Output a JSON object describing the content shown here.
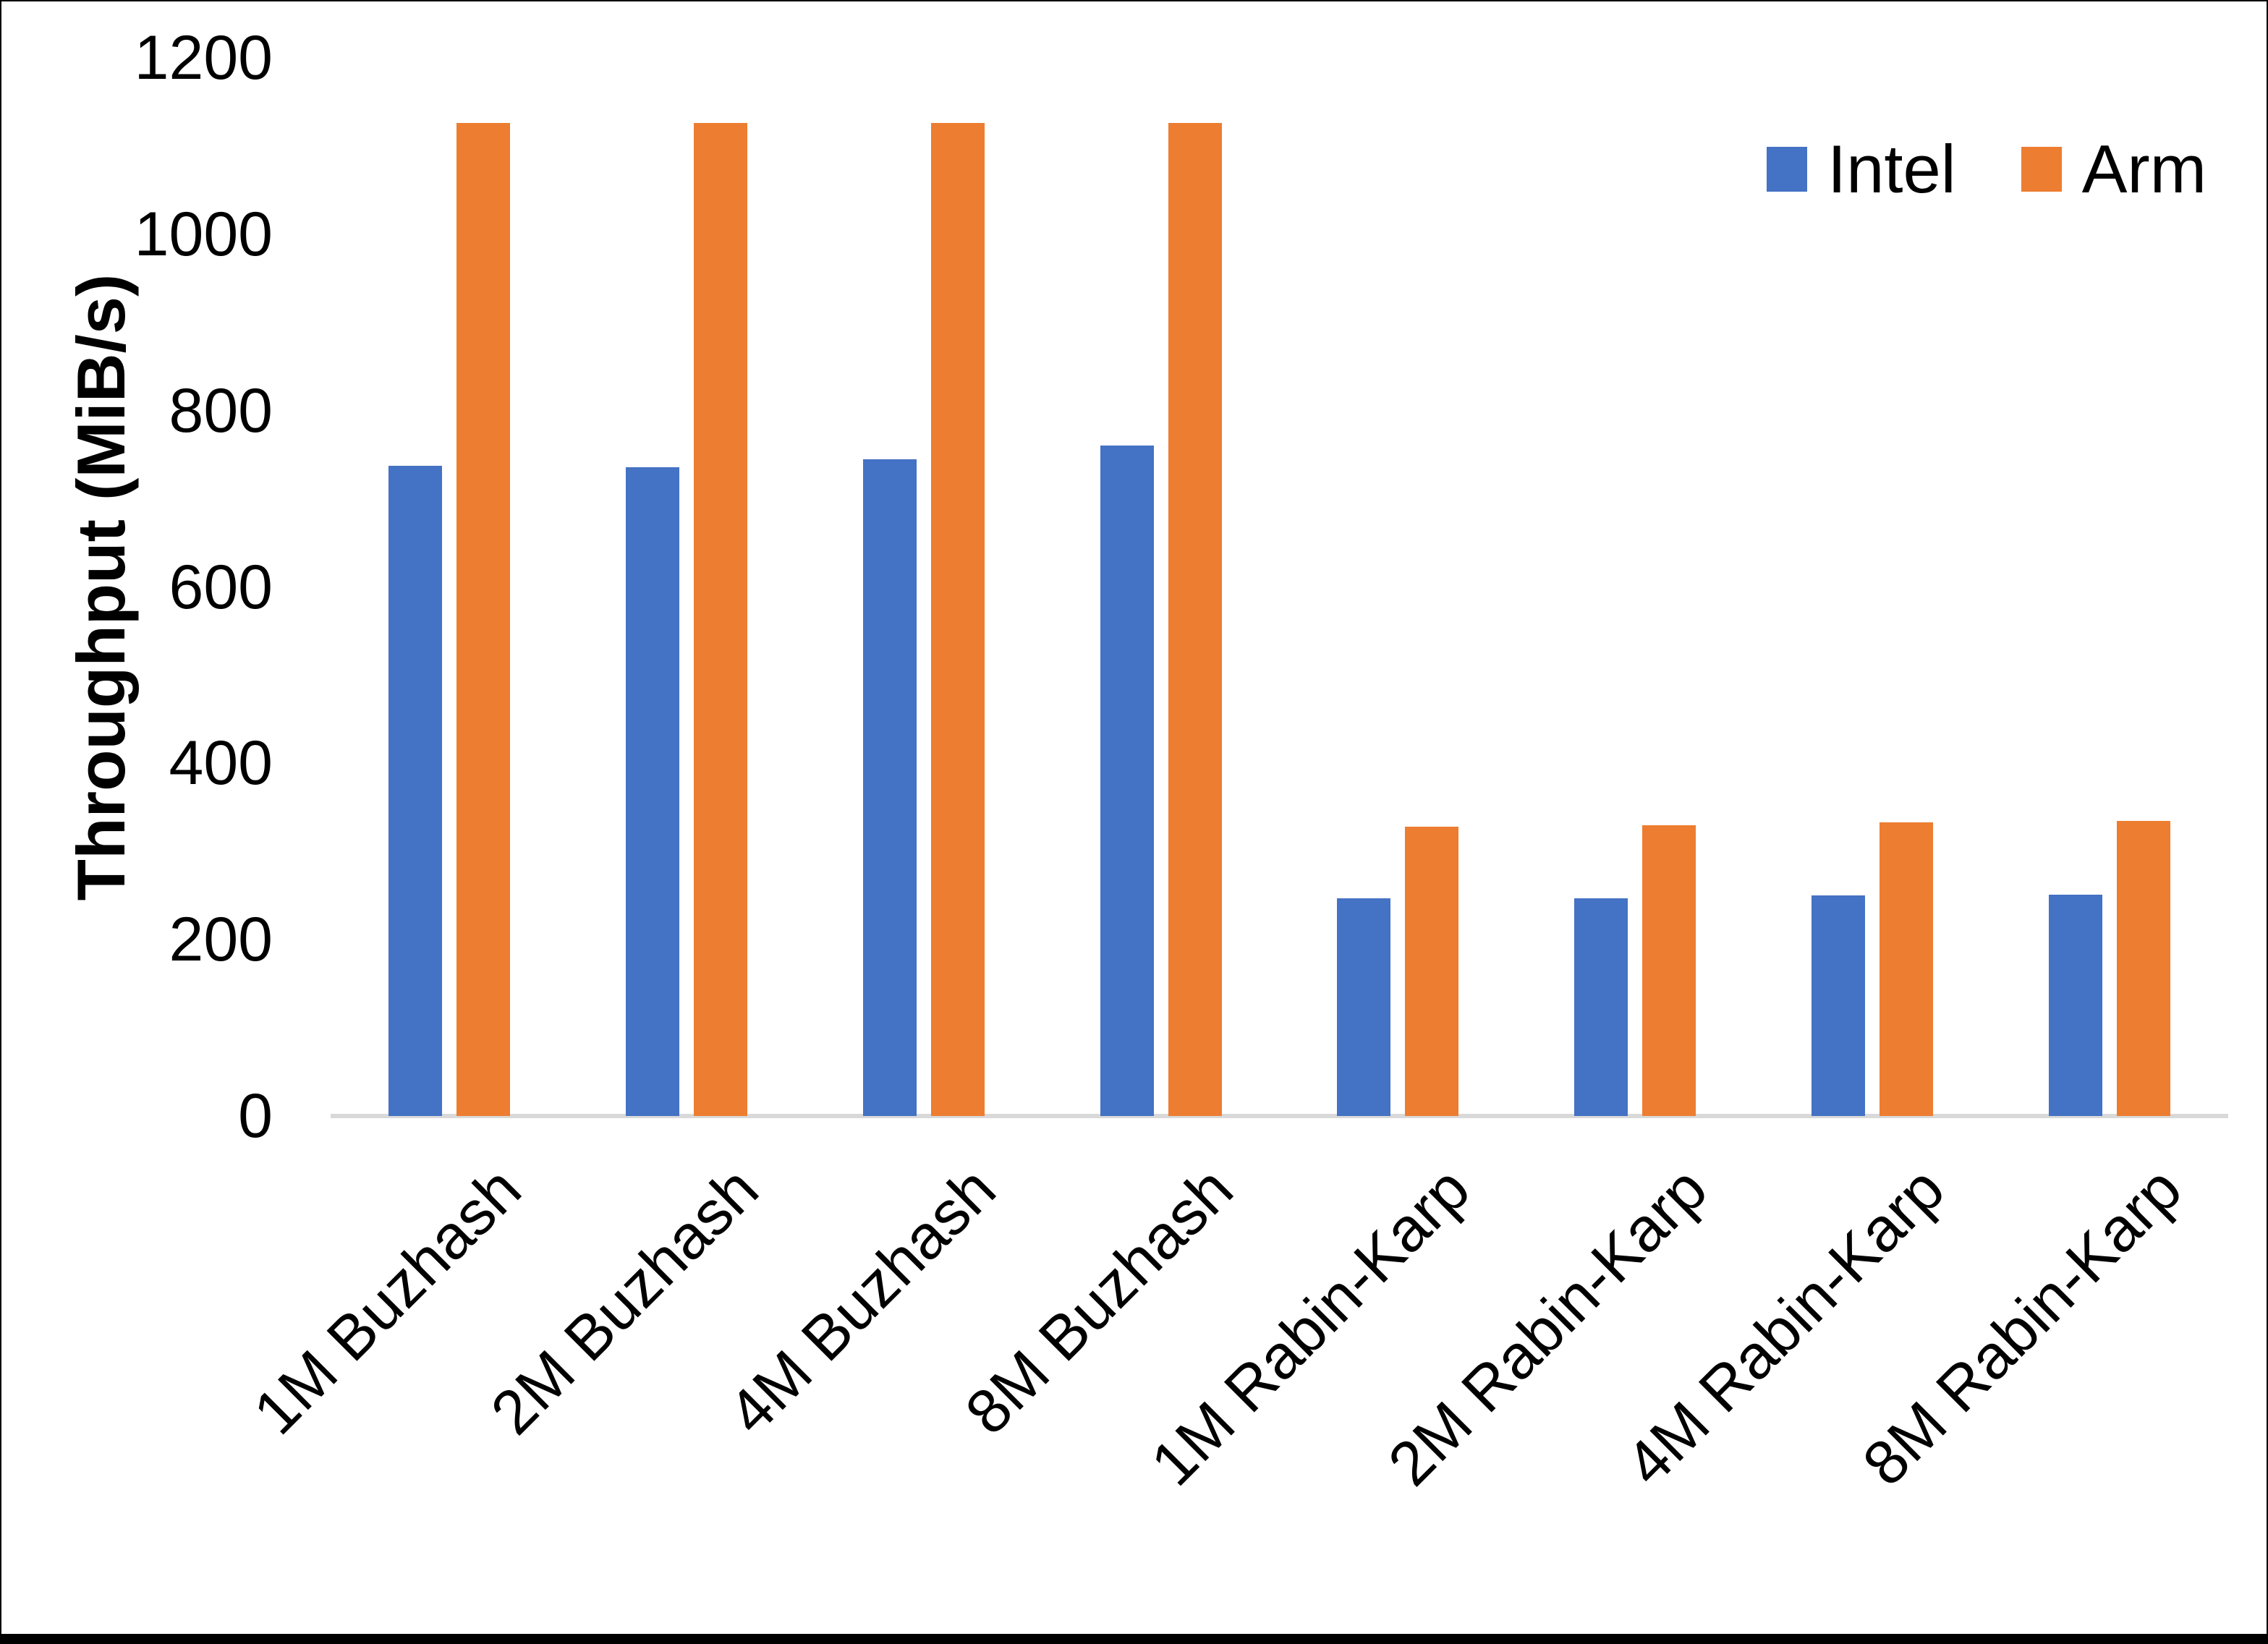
{
  "chart_data": {
    "type": "bar",
    "title": "",
    "ylabel": "Throughput (MiB/s)",
    "xlabel": "",
    "ylim": [
      0,
      1200
    ],
    "yticks": [
      0,
      200,
      400,
      600,
      800,
      1000,
      1200
    ],
    "grid": false,
    "legend_position": "top-right",
    "axis_line_color": "#d9d9d9",
    "text_color": "#000000",
    "categories": [
      "1M Buzhash",
      "2M Buzhash",
      "4M Buzhash",
      "8M Buzhash",
      "1M Rabin-Karp",
      "2M Rabin-Karp",
      "4M Rabin-Karp",
      "8M Rabin-Karp"
    ],
    "series": [
      {
        "name": "Intel",
        "color": "#4472c4",
        "values": [
          737,
          736,
          745,
          760,
          247,
          247,
          250,
          251
        ]
      },
      {
        "name": "Arm",
        "color": "#ed7d31",
        "values": [
          1126,
          1126,
          1126,
          1126,
          328,
          330,
          333,
          335
        ]
      }
    ]
  },
  "legend": {
    "intel_label": "Intel",
    "arm_label": "Arm"
  }
}
